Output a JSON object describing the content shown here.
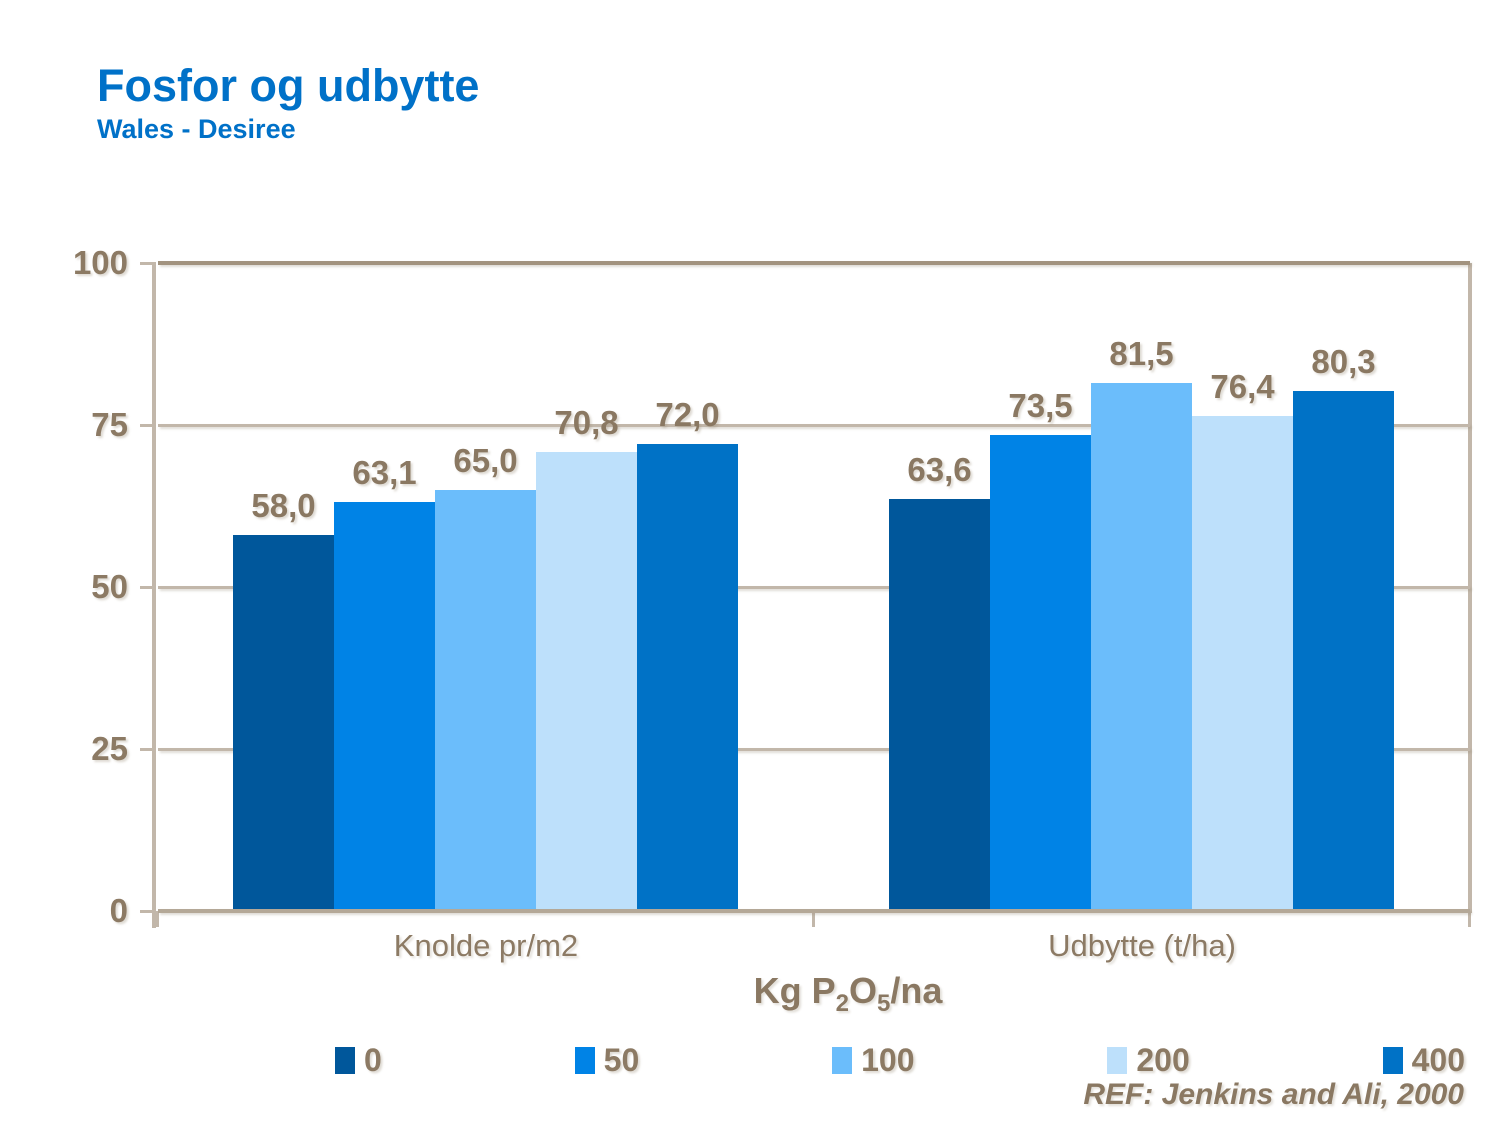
{
  "header": {
    "title": "Fosfor og udbytte",
    "subtitle": "Wales - Desiree"
  },
  "chart_data": {
    "type": "bar",
    "title": "Fosfor og udbytte",
    "subtitle": "Wales - Desiree",
    "categories": [
      "Knolde pr/m2",
      "Udbytte (t/ha)"
    ],
    "series": [
      {
        "name": "0",
        "color": "#00579B",
        "values": [
          58.0,
          63.6
        ],
        "labels": [
          "58,0",
          "63,6"
        ]
      },
      {
        "name": "50",
        "color": "#0083E6",
        "values": [
          63.1,
          73.5
        ],
        "labels": [
          "63,1",
          "73,5"
        ]
      },
      {
        "name": "100",
        "color": "#6BBDFB",
        "values": [
          65.0,
          81.5
        ],
        "labels": [
          "65,0",
          "81,5"
        ]
      },
      {
        "name": "200",
        "color": "#BDE0FB",
        "values": [
          70.8,
          76.4
        ],
        "labels": [
          "70,8",
          "76,4"
        ]
      },
      {
        "name": "400",
        "color": "#0072C6",
        "values": [
          72.0,
          80.3
        ],
        "labels": [
          "72,0",
          "80,3"
        ]
      }
    ],
    "y_axis": {
      "min": 0,
      "max": 100,
      "ticks": [
        0,
        25,
        50,
        75,
        100
      ],
      "tick_labels": [
        "0",
        "25",
        "50",
        "75",
        "100"
      ]
    },
    "x_axis_title": "Kg P₂O₅/na",
    "x_axis_title_parts": [
      {
        "t": "Kg P",
        "sub": false
      },
      {
        "t": "2",
        "sub": true
      },
      {
        "t": "O",
        "sub": false
      },
      {
        "t": "5",
        "sub": true
      },
      {
        "t": "/na",
        "sub": false
      }
    ],
    "legend_position": "bottom",
    "grid": true,
    "decimal_separator": ","
  },
  "footer": {
    "reference": "REF: Jenkins and Ali, 2000"
  },
  "colors": {
    "title_blue": "#0071C8",
    "axis_text": "#8C7A64",
    "data_label": "#8A7862",
    "gridline": "#C2B7AA",
    "top_gridline": "#A2937F",
    "baseline": "#B4A897"
  }
}
